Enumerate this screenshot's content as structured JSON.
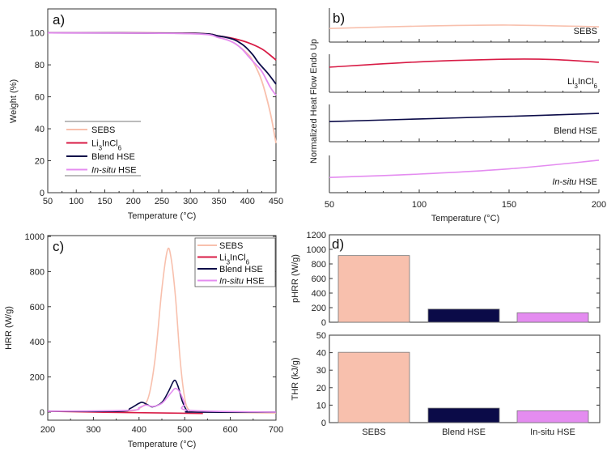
{
  "colors": {
    "SEBS": "#f8c0ad",
    "Li3InCl6": "#d81b45",
    "Blend HSE": "#0b0b48",
    "In-situ HSE": "#e48cf0"
  },
  "chart_data": [
    {
      "panel": "a)",
      "type": "line",
      "xlabel": "Temperature (°C)",
      "ylabel": "Weight (%)",
      "xlim": [
        50,
        450
      ],
      "ylim": [
        0,
        115
      ],
      "xticks": [
        50,
        100,
        150,
        200,
        250,
        300,
        350,
        400,
        450
      ],
      "yticks": [
        0,
        20,
        40,
        60,
        80,
        100
      ],
      "legend_position": "bottom-left",
      "series": [
        {
          "name": "SEBS",
          "x": [
            50,
            300,
            350,
            375,
            400,
            410,
            425,
            440,
            450
          ],
          "y": [
            100,
            99.8,
            97,
            94,
            87,
            82,
            70,
            50,
            31
          ]
        },
        {
          "name": "Li3InCl6",
          "x": [
            50,
            300,
            350,
            375,
            400,
            425,
            440,
            450
          ],
          "y": [
            100,
            99.8,
            98,
            96.5,
            94,
            90,
            86,
            83
          ]
        },
        {
          "name": "Blend HSE",
          "x": [
            50,
            300,
            350,
            375,
            390,
            400,
            410,
            420,
            435,
            450
          ],
          "y": [
            100,
            99.7,
            98,
            96,
            93,
            90,
            86,
            81,
            75,
            68
          ]
        },
        {
          "name": "In-situ HSE",
          "x": [
            50,
            300,
            350,
            375,
            390,
            400,
            410,
            425,
            440,
            450
          ],
          "y": [
            100,
            99.5,
            97,
            94,
            90,
            86,
            82,
            76,
            66,
            61
          ]
        }
      ]
    },
    {
      "panel": "b)",
      "type": "line",
      "xlabel": "Temperature (°C)",
      "ylabel": "Normalized Heat Flow Endo Up",
      "xlim": [
        50,
        200
      ],
      "ylim_normalized": [
        0,
        1
      ],
      "xticks": [
        50,
        100,
        150,
        200
      ],
      "series": [
        {
          "name": "SEBS",
          "x": [
            50,
            100,
            150,
            200
          ],
          "y": [
            0.4,
            0.47,
            0.5,
            0.45
          ]
        },
        {
          "name": "Li3InCl6",
          "x": [
            50,
            100,
            150,
            175,
            200
          ],
          "y": [
            0.66,
            0.8,
            0.87,
            0.86,
            0.79
          ]
        },
        {
          "name": "Blend HSE",
          "x": [
            50,
            100,
            150,
            200
          ],
          "y": [
            0.54,
            0.61,
            0.68,
            0.76
          ]
        },
        {
          "name": "In-situ HSE",
          "x": [
            50,
            100,
            150,
            200
          ],
          "y": [
            0.41,
            0.5,
            0.64,
            0.87
          ]
        }
      ]
    },
    {
      "panel": "c)",
      "type": "line",
      "xlabel": "Temperature (°C)",
      "ylabel": "HRR (W/g)",
      "xlim": [
        200,
        700
      ],
      "ylim": [
        -50,
        1000
      ],
      "xticks": [
        200,
        300,
        400,
        500,
        600,
        700
      ],
      "yticks": [
        0,
        200,
        400,
        600,
        800,
        1000
      ],
      "legend_position": "top-right",
      "series": [
        {
          "name": "SEBS",
          "x": [
            200,
            350,
            380,
            400,
            420,
            435,
            450,
            462,
            470,
            480,
            490,
            500,
            510,
            530,
            700
          ],
          "y": [
            5,
            2,
            5,
            20,
            80,
            300,
            700,
            920,
            880,
            650,
            300,
            80,
            10,
            0,
            -5
          ]
        },
        {
          "name": "Li3InCl6",
          "x": [
            200,
            300,
            450,
            540
          ],
          "y": [
            5,
            0,
            -5,
            -8
          ]
        },
        {
          "name": "Blend HSE",
          "x": [
            200,
            360,
            380,
            400,
            408,
            420,
            430,
            450,
            465,
            477,
            485,
            495,
            505,
            520,
            700
          ],
          "y": [
            5,
            5,
            20,
            50,
            55,
            40,
            30,
            55,
            120,
            180,
            150,
            60,
            10,
            0,
            0
          ]
        },
        {
          "name": "In-situ HSE",
          "x": [
            200,
            380,
            400,
            415,
            430,
            450,
            470,
            480,
            490,
            500,
            510,
            700
          ],
          "y": [
            5,
            10,
            25,
            40,
            32,
            50,
            110,
            135,
            110,
            50,
            10,
            0
          ]
        }
      ]
    },
    {
      "panel": "d)",
      "type": "bar",
      "categories": [
        "SEBS",
        "Blend HSE",
        "In-situ HSE"
      ],
      "subplots": [
        {
          "ylabel": "pHRR (W/g)",
          "ylim": [
            0,
            1200
          ],
          "yticks": [
            0,
            200,
            400,
            600,
            800,
            1000,
            1200
          ],
          "values": [
            915,
            180,
            130
          ]
        },
        {
          "ylabel": "THR (kJ/g)",
          "ylim": [
            0,
            50
          ],
          "yticks": [
            0,
            10,
            20,
            30,
            40,
            50
          ],
          "values": [
            40.2,
            8.3,
            6.8
          ]
        }
      ]
    }
  ]
}
